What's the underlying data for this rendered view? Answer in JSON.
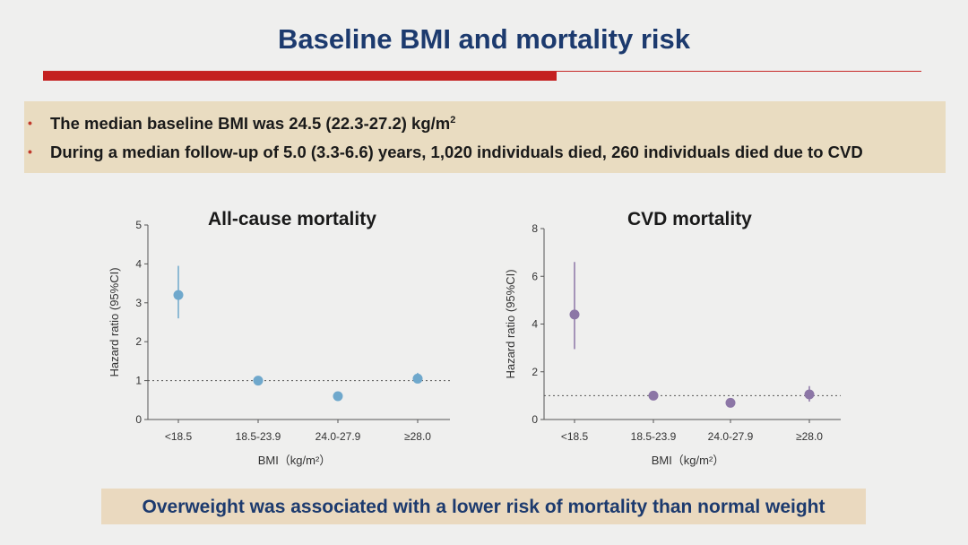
{
  "slide": {
    "title": "Baseline BMI and mortality risk",
    "bullets": [
      {
        "text": "The median baseline BMI was 24.5 (22.3-27.2) kg/m",
        "sup": "2"
      },
      {
        "text": "During a median follow-up of 5.0 (3.3-6.6) years, 1,020 individuals died, 260 individuals died due to CVD",
        "sup": ""
      }
    ],
    "conclusion": "Overweight was associated with a lower risk of mortality than normal weight"
  },
  "colors": {
    "title": "#1c3a6e",
    "accent_red": "#c42020",
    "bullet_box": "#e9dcc1",
    "allcause_marker": "#6fa8cc",
    "cvd_marker": "#8c76a6"
  },
  "chart_data": [
    {
      "type": "scatter",
      "title": "All-cause mortality",
      "xlabel": "BMI（kg/m²）",
      "ylabel": "Hazard ratio (95%CI)",
      "categories": [
        "<18.5",
        "18.5-23.9",
        "24.0-27.9",
        "≥28.0"
      ],
      "values": [
        3.2,
        1.0,
        0.6,
        1.05
      ],
      "ci_low": [
        2.6,
        1.0,
        0.6,
        0.95
      ],
      "ci_high": [
        3.95,
        1.0,
        0.6,
        1.2
      ],
      "ylim": [
        0,
        5
      ],
      "yticks": [
        "0",
        "1",
        "2",
        "3",
        "4",
        "5"
      ],
      "reference_line": 1,
      "grid": false
    },
    {
      "type": "scatter",
      "title": "CVD mortality",
      "xlabel": "BMI（kg/m²）",
      "ylabel": "Hazard ratio (95%CI)",
      "categories": [
        "<18.5",
        "18.5-23.9",
        "24.0-27.9",
        "≥28.0"
      ],
      "values": [
        4.4,
        1.0,
        0.7,
        1.05
      ],
      "ci_low": [
        2.95,
        1.0,
        0.7,
        0.75
      ],
      "ci_high": [
        6.6,
        1.0,
        0.7,
        1.4
      ],
      "ylim": [
        0,
        8
      ],
      "yticks": [
        "0",
        "2",
        "4",
        "6",
        "8"
      ],
      "reference_line": 1,
      "grid": false
    }
  ]
}
